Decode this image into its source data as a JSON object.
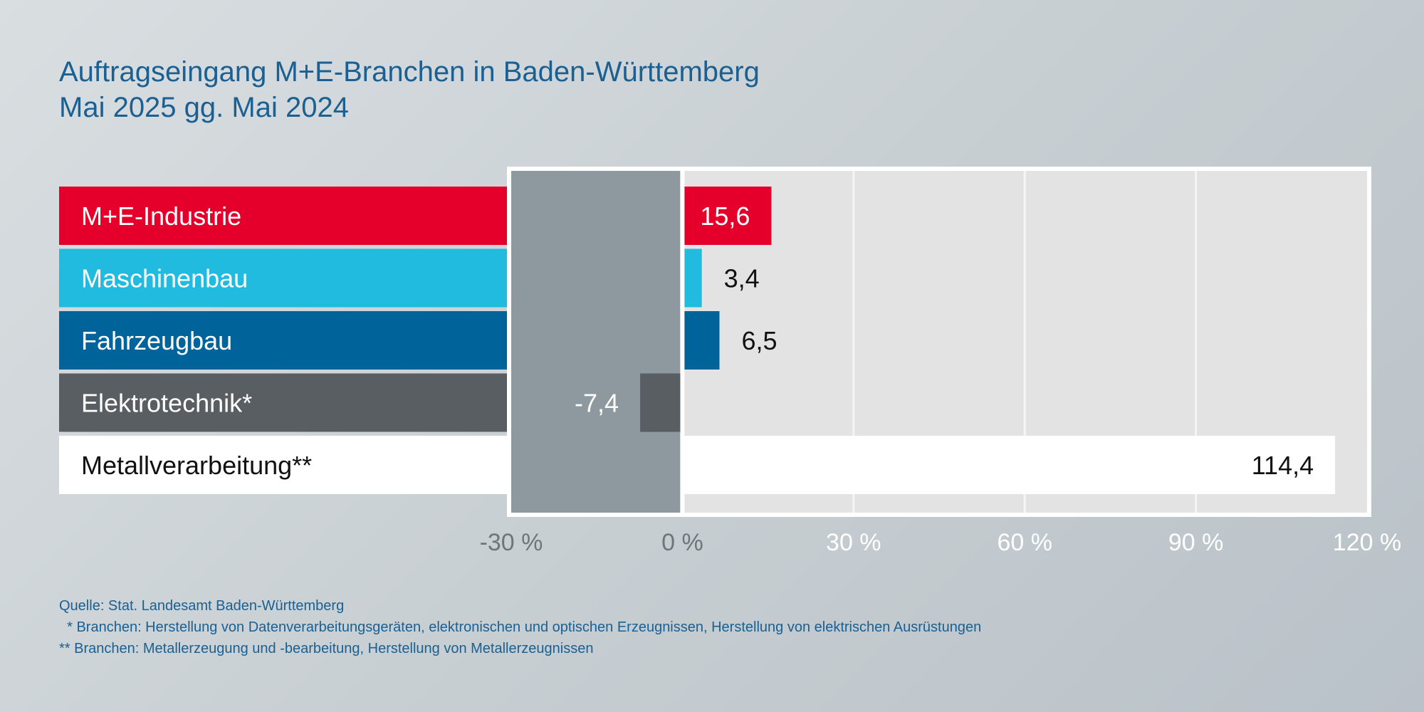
{
  "title_line1": "Auftragseingang M+E-Branchen in Baden-Württemberg",
  "title_line2": "Mai 2025 gg. Mai 2024",
  "colors": {
    "title": "#1a6092",
    "plot_bg": "#e3e3e3",
    "zero_band": "#8d999f",
    "grid": "#f5f5f5"
  },
  "chart_data": {
    "type": "bar",
    "orientation": "horizontal",
    "categories": [
      "M+E-Industrie",
      "Maschinenbau",
      "Fahrzeugbau",
      "Elektrotechnik*",
      "Metallverarbeitung**"
    ],
    "values": [
      15.6,
      3.4,
      6.5,
      -7.4,
      114.4
    ],
    "value_labels": [
      "15,6",
      "3,4",
      "6,5",
      "-7,4",
      "114,4"
    ],
    "bar_colors": [
      "#e4002b",
      "#22bbe0",
      "#00649a",
      "#585e61",
      "#ffffff"
    ],
    "label_text_colors": [
      "#ffffff",
      "#ffffff",
      "#ffffff",
      "#ffffff",
      "#111111"
    ],
    "value_text_colors": [
      "#ffffff",
      "#111111",
      "#111111",
      "#ffffff",
      "#111111"
    ],
    "xlim": [
      -30,
      120
    ],
    "x_ticks": [
      -30,
      0,
      30,
      60,
      90,
      120
    ],
    "x_tick_labels": [
      "-30 %",
      "0 %",
      "30 %",
      "60 %",
      "90 %",
      "120 %"
    ],
    "xlabel": "",
    "ylabel": ""
  },
  "notes": [
    "Quelle: Stat. Landesamt Baden-Württemberg",
    "  * Branchen: Herstellung von Datenverarbeitungsgeräten, elektronischen und optischen Erzeugnissen, Herstellung von elektrischen Ausrüstungen",
    "** Branchen: Metallerzeugung und -bearbeitung, Herstellung von Metallerzeugnissen"
  ]
}
